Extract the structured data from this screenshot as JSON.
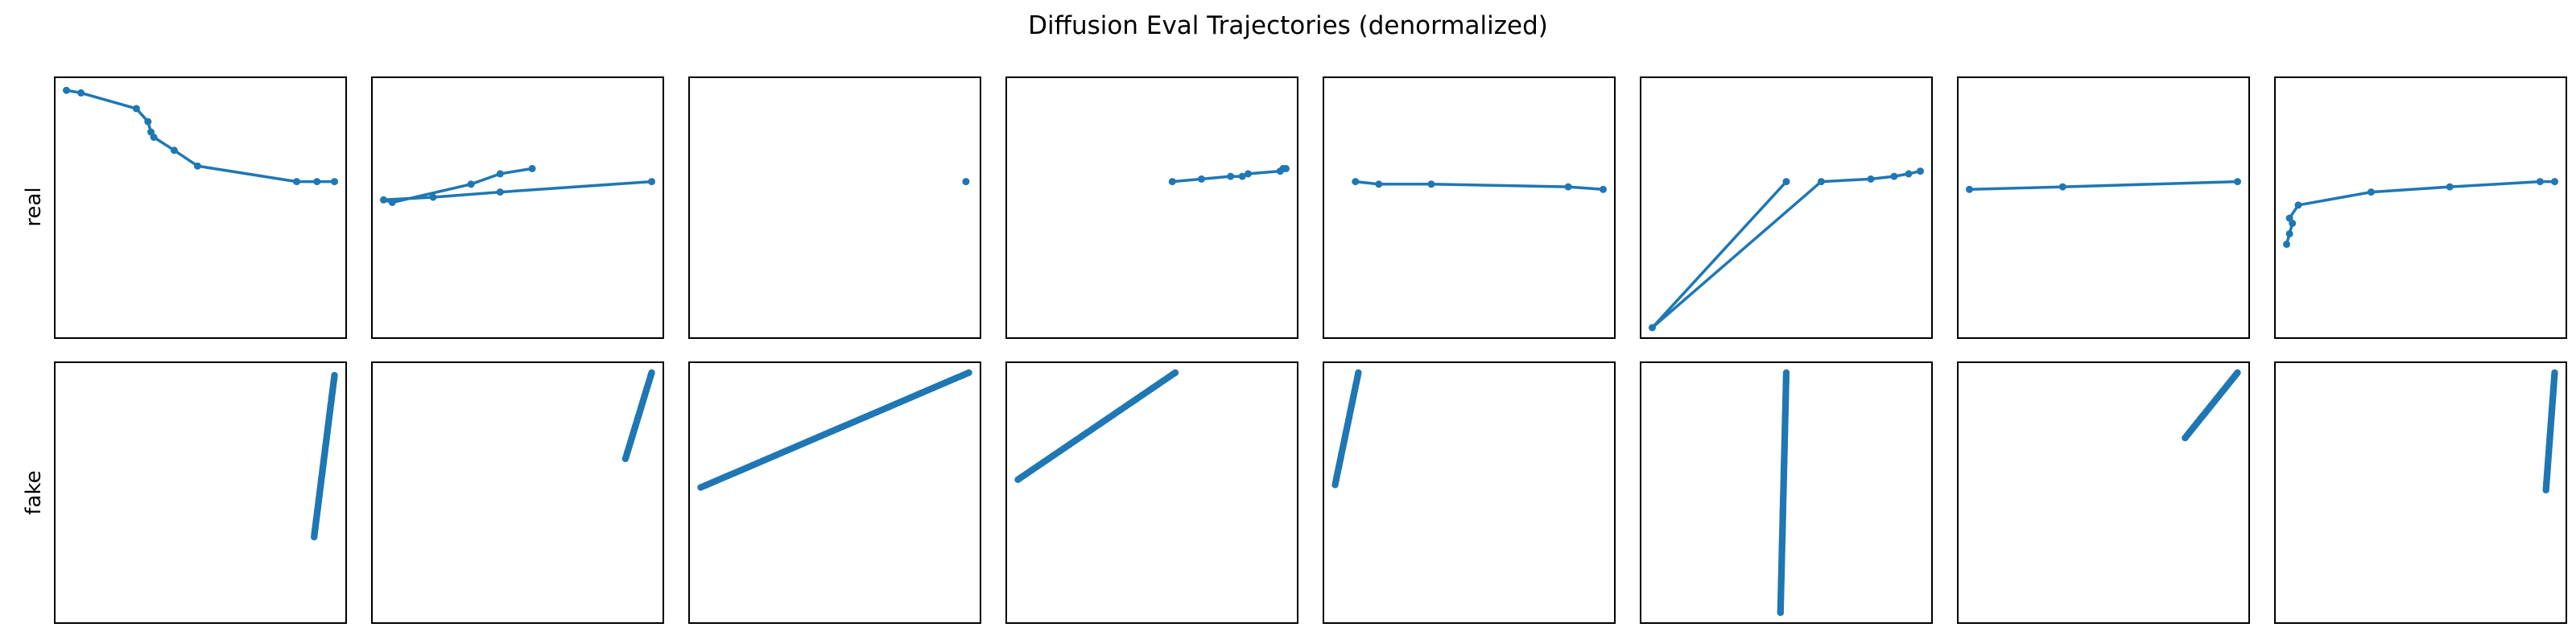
{
  "title": "Diffusion Eval Trajectories (denormalized)",
  "rows": [
    "real",
    "fake"
  ],
  "chart_data": [
    {
      "type": "line",
      "row": "real",
      "col": 1,
      "markers": true,
      "color": "#1f77b4",
      "x": [
        0.04,
        0.09,
        0.28,
        0.32,
        0.33,
        0.34,
        0.41,
        0.49,
        0.83,
        0.9,
        0.96
      ],
      "y": [
        0.95,
        0.94,
        0.88,
        0.83,
        0.79,
        0.77,
        0.72,
        0.66,
        0.6,
        0.6,
        0.6
      ],
      "xlim": [
        0,
        1
      ],
      "ylim": [
        0,
        1
      ]
    },
    {
      "type": "line",
      "row": "real",
      "col": 2,
      "markers": true,
      "color": "#1f77b4",
      "x": [
        0.55,
        0.44,
        0.34,
        0.07,
        0.04,
        0.21,
        0.44,
        0.96
      ],
      "y": [
        0.65,
        0.63,
        0.59,
        0.52,
        0.53,
        0.54,
        0.56,
        0.6
      ],
      "xlim": [
        0,
        1
      ],
      "ylim": [
        0,
        1
      ]
    },
    {
      "type": "line",
      "row": "real",
      "col": 3,
      "markers": true,
      "color": "#1f77b4",
      "x": [
        0.95
      ],
      "y": [
        0.6
      ],
      "xlim": [
        0,
        1
      ],
      "ylim": [
        0,
        1
      ]
    },
    {
      "type": "line",
      "row": "real",
      "col": 4,
      "markers": true,
      "color": "#1f77b4",
      "x": [
        0.57,
        0.67,
        0.77,
        0.81,
        0.83,
        0.94,
        0.95,
        0.96
      ],
      "y": [
        0.6,
        0.61,
        0.62,
        0.62,
        0.63,
        0.64,
        0.65,
        0.65
      ],
      "xlim": [
        0,
        1
      ],
      "ylim": [
        0,
        1
      ]
    },
    {
      "type": "line",
      "row": "real",
      "col": 5,
      "markers": true,
      "color": "#1f77b4",
      "x": [
        0.11,
        0.19,
        0.37,
        0.84,
        0.96
      ],
      "y": [
        0.6,
        0.59,
        0.59,
        0.58,
        0.57
      ],
      "xlim": [
        0,
        1
      ],
      "ylim": [
        0,
        1
      ]
    },
    {
      "type": "line",
      "row": "real",
      "col": 6,
      "markers": true,
      "color": "#1f77b4",
      "x": [
        0.5,
        0.04,
        0.62,
        0.79,
        0.87,
        0.92,
        0.96
      ],
      "y": [
        0.6,
        0.04,
        0.6,
        0.61,
        0.62,
        0.63,
        0.64
      ],
      "xlim": [
        0,
        1
      ],
      "ylim": [
        0,
        1
      ]
    },
    {
      "type": "line",
      "row": "real",
      "col": 7,
      "markers": true,
      "color": "#1f77b4",
      "x": [
        0.04,
        0.36,
        0.96
      ],
      "y": [
        0.57,
        0.58,
        0.6
      ],
      "xlim": [
        0,
        1
      ],
      "ylim": [
        0,
        1
      ]
    },
    {
      "type": "line",
      "row": "real",
      "col": 8,
      "markers": true,
      "color": "#1f77b4",
      "x": [
        0.04,
        0.05,
        0.06,
        0.05,
        0.08,
        0.33,
        0.6,
        0.91,
        0.96
      ],
      "y": [
        0.36,
        0.4,
        0.44,
        0.46,
        0.51,
        0.56,
        0.58,
        0.6,
        0.6
      ],
      "xlim": [
        0,
        1
      ],
      "ylim": [
        0,
        1
      ]
    },
    {
      "type": "line",
      "row": "fake",
      "col": 1,
      "markers": true,
      "dense": true,
      "color": "#1f77b4",
      "x": [
        0.89,
        0.96
      ],
      "y": [
        0.33,
        0.95
      ],
      "points": 120,
      "xlim": [
        0,
        1
      ],
      "ylim": [
        0,
        1
      ]
    },
    {
      "type": "line",
      "row": "fake",
      "col": 2,
      "markers": true,
      "dense": true,
      "color": "#1f77b4",
      "x": [
        0.87,
        0.96
      ],
      "y": [
        0.63,
        0.96
      ],
      "points": 60,
      "xlim": [
        0,
        1
      ],
      "ylim": [
        0,
        1
      ]
    },
    {
      "type": "line",
      "row": "fake",
      "col": 3,
      "markers": true,
      "dense": true,
      "color": "#1f77b4",
      "x": [
        0.04,
        0.96
      ],
      "y": [
        0.52,
        0.96
      ],
      "points": 120,
      "xlim": [
        0,
        1
      ],
      "ylim": [
        0,
        1
      ]
    },
    {
      "type": "line",
      "row": "fake",
      "col": 4,
      "markers": true,
      "dense": true,
      "color": "#1f77b4",
      "x": [
        0.04,
        0.58
      ],
      "y": [
        0.55,
        0.96
      ],
      "points": 80,
      "xlim": [
        0,
        1
      ],
      "ylim": [
        0,
        1
      ]
    },
    {
      "type": "line",
      "row": "fake",
      "col": 5,
      "markers": true,
      "dense": true,
      "color": "#1f77b4",
      "x": [
        0.04,
        0.12
      ],
      "y": [
        0.53,
        0.96
      ],
      "points": 60,
      "xlim": [
        0,
        1
      ],
      "ylim": [
        0,
        1
      ]
    },
    {
      "type": "line",
      "row": "fake",
      "col": 6,
      "markers": true,
      "dense": true,
      "color": "#1f77b4",
      "x": [
        0.48,
        0.5
      ],
      "y": [
        0.04,
        0.96
      ],
      "points": 140,
      "xlim": [
        0,
        1
      ],
      "ylim": [
        0,
        1
      ]
    },
    {
      "type": "line",
      "row": "fake",
      "col": 7,
      "markers": true,
      "dense": true,
      "color": "#1f77b4",
      "x": [
        0.78,
        0.96
      ],
      "y": [
        0.71,
        0.96
      ],
      "points": 60,
      "xlim": [
        0,
        1
      ],
      "ylim": [
        0,
        1
      ]
    },
    {
      "type": "line",
      "row": "fake",
      "col": 8,
      "markers": true,
      "dense": true,
      "color": "#1f77b4",
      "x": [
        0.93,
        0.96
      ],
      "y": [
        0.51,
        0.96
      ],
      "points": 80,
      "xlim": [
        0,
        1
      ],
      "ylim": [
        0,
        1
      ]
    }
  ]
}
